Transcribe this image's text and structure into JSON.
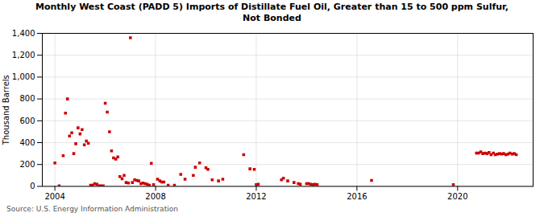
{
  "chart_data": {
    "type": "scatter",
    "title": "Monthly West Coast (PADD 5) Imports of Distillate Fuel Oil, Greater than 15 to 500 ppm Sulfur,\nNot Bonded",
    "ylabel": "Thousand Barrels",
    "source": "Source: U.S. Energy Information Administration",
    "color": "#cc0000",
    "marker": "square",
    "grid": true,
    "xlim": [
      2003.5,
      2023.0
    ],
    "xticks": [
      2004,
      2008,
      2012,
      2016,
      2020
    ],
    "ylim": [
      0,
      1400
    ],
    "yticks": [
      0,
      200,
      400,
      600,
      800,
      {
        "value": 1000,
        "label": "1,000"
      },
      {
        "value": 1200,
        "label": "1,200"
      },
      {
        "value": 1400,
        "label": "1,400"
      }
    ],
    "x": [
      2004.0,
      2004.17,
      2004.33,
      2004.42,
      2004.5,
      2004.58,
      2004.67,
      2004.75,
      2004.83,
      2004.92,
      2005.0,
      2005.08,
      2005.17,
      2005.25,
      2005.33,
      2005.42,
      2005.5,
      2005.58,
      2005.67,
      2005.75,
      2005.83,
      2005.92,
      2006.0,
      2006.08,
      2006.17,
      2006.25,
      2006.33,
      2006.42,
      2006.5,
      2006.58,
      2006.67,
      2006.75,
      2006.83,
      2006.92,
      2007.0,
      2007.08,
      2007.17,
      2007.25,
      2007.33,
      2007.42,
      2007.5,
      2007.58,
      2007.67,
      2007.75,
      2007.83,
      2007.92,
      2008.08,
      2008.17,
      2008.25,
      2008.33,
      2008.5,
      2008.75,
      2009.0,
      2009.17,
      2009.5,
      2009.58,
      2009.75,
      2010.0,
      2010.08,
      2010.25,
      2010.5,
      2010.67,
      2011.5,
      2011.75,
      2011.92,
      2012.0,
      2012.08,
      2013.0,
      2013.08,
      2013.25,
      2013.5,
      2013.67,
      2013.75,
      2014.0,
      2014.08,
      2014.17,
      2014.25,
      2014.33,
      2014.42,
      2016.58,
      2019.83,
      2020.75,
      2020.83,
      2020.92,
      2021.0,
      2021.08,
      2021.17,
      2021.25,
      2021.33,
      2021.42,
      2021.5,
      2021.58,
      2021.67,
      2021.75,
      2021.83,
      2021.92,
      2022.0,
      2022.08,
      2022.17,
      2022.25,
      2022.33
    ],
    "values": [
      215,
      5,
      280,
      670,
      800,
      460,
      490,
      300,
      390,
      535,
      480,
      520,
      380,
      415,
      395,
      10,
      10,
      25,
      20,
      5,
      5,
      5,
      760,
      680,
      500,
      325,
      260,
      250,
      270,
      90,
      70,
      100,
      35,
      30,
      1360,
      35,
      60,
      55,
      50,
      25,
      30,
      25,
      20,
      10,
      210,
      15,
      65,
      50,
      40,
      40,
      10,
      10,
      110,
      65,
      100,
      175,
      215,
      170,
      155,
      60,
      50,
      65,
      290,
      160,
      155,
      15,
      20,
      60,
      75,
      50,
      35,
      25,
      20,
      25,
      25,
      20,
      15,
      20,
      15,
      55,
      15,
      305,
      305,
      315,
      300,
      305,
      300,
      310,
      290,
      305,
      290,
      295,
      300,
      295,
      300,
      290,
      295,
      305,
      295,
      300,
      290
    ]
  }
}
